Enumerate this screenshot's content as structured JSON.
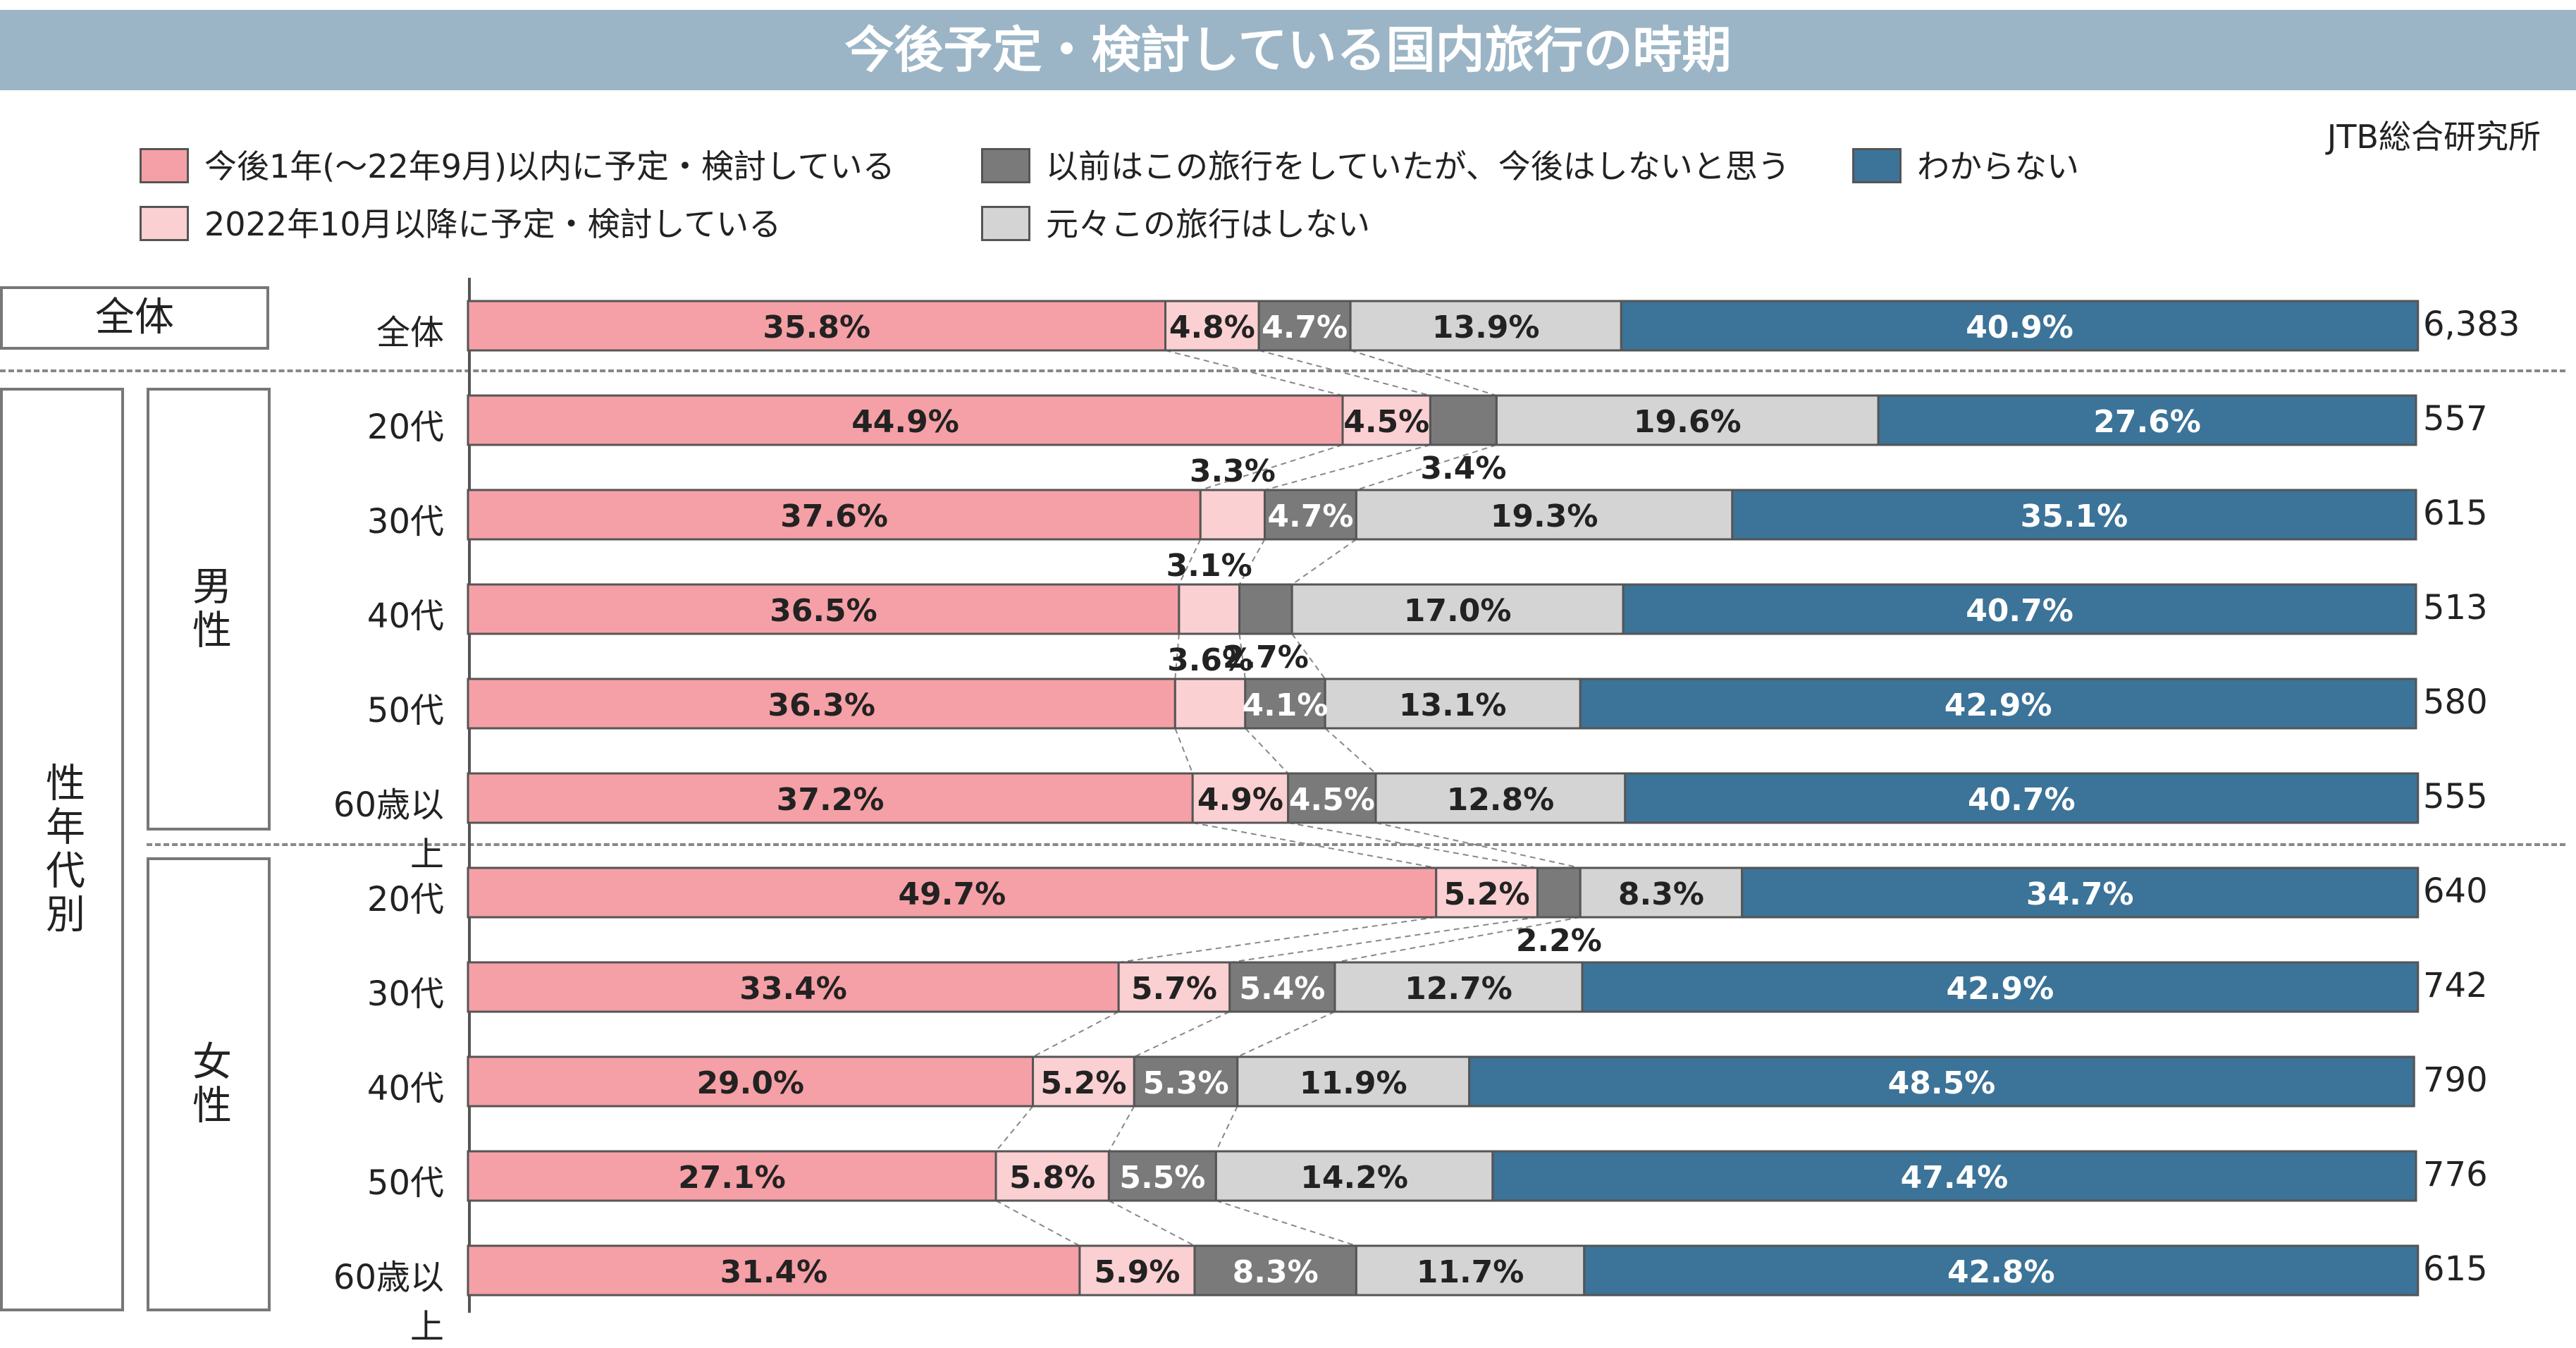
{
  "title": "今後予定・検討している国内旅行の時期",
  "source": "JTB総合研究所",
  "legend": [
    {
      "label": "今後1年(～22年9月)以内に予定・検討している",
      "color": "#f5a0a6"
    },
    {
      "label": "2022年10月以降に予定・検討している",
      "color": "#fbd0d2"
    },
    {
      "label": "以前はこの旅行をしていたが、今後はしないと思う",
      "color": "#7a7a7a"
    },
    {
      "label": "元々この旅行はしない",
      "color": "#d4d4d4"
    },
    {
      "label": "わからない",
      "color": "#3c7398"
    }
  ],
  "groups": {
    "overall": "全体",
    "by_gender_age": "性年代別",
    "male": "男性",
    "female": "女性"
  },
  "chart_data": {
    "type": "bar",
    "orientation": "horizontal-stacked-100",
    "title": "今後予定・検討している国内旅行の時期",
    "series_names": [
      "今後1年(～22年9月)以内に予定・検討している",
      "2022年10月以降に予定・検討している",
      "以前はこの旅行をしていたが、今後はしないと思う",
      "元々この旅行はしない",
      "わからない"
    ],
    "rows": [
      {
        "label": "全体",
        "group": "全体",
        "values": [
          35.8,
          4.8,
          4.7,
          13.9,
          40.9
        ],
        "labels": [
          "35.8%",
          "4.8%",
          "4.7%",
          "13.9%",
          "40.9%"
        ],
        "n": "6,383"
      },
      {
        "label": "20代",
        "group": "男性",
        "values": [
          44.9,
          4.5,
          3.4,
          19.6,
          27.6
        ],
        "labels": [
          "44.9%",
          "4.5%",
          "3.4%",
          "19.6%",
          "27.6%"
        ],
        "n": "557"
      },
      {
        "label": "30代",
        "group": "男性",
        "values": [
          37.6,
          3.3,
          4.7,
          19.3,
          35.1
        ],
        "labels": [
          "37.6%",
          "3.3%",
          "4.7%",
          "19.3%",
          "35.1%"
        ],
        "n": "615"
      },
      {
        "label": "40代",
        "group": "男性",
        "values": [
          36.5,
          3.1,
          2.7,
          17.0,
          40.7
        ],
        "labels": [
          "36.5%",
          "3.1%",
          "2.7%",
          "17.0%",
          "40.7%"
        ],
        "n": "513"
      },
      {
        "label": "50代",
        "group": "男性",
        "values": [
          36.3,
          3.6,
          4.1,
          13.1,
          42.9
        ],
        "labels": [
          "36.3%",
          "3.6%",
          "4.1%",
          "13.1%",
          "42.9%"
        ],
        "n": "580"
      },
      {
        "label": "60歳以上",
        "group": "男性",
        "values": [
          37.2,
          4.9,
          4.5,
          12.8,
          40.7
        ],
        "labels": [
          "37.2%",
          "4.9%",
          "4.5%",
          "12.8%",
          "40.7%"
        ],
        "n": "555"
      },
      {
        "label": "20代",
        "group": "女性",
        "values": [
          49.7,
          5.2,
          2.2,
          8.3,
          34.7
        ],
        "labels": [
          "49.7%",
          "5.2%",
          "2.2%",
          "8.3%",
          "34.7%"
        ],
        "n": "640"
      },
      {
        "label": "30代",
        "group": "女性",
        "values": [
          33.4,
          5.7,
          5.4,
          12.7,
          42.9
        ],
        "labels": [
          "33.4%",
          "5.7%",
          "5.4%",
          "12.7%",
          "42.9%"
        ],
        "n": "742"
      },
      {
        "label": "40代",
        "group": "女性",
        "values": [
          29.0,
          5.2,
          5.3,
          11.9,
          48.5
        ],
        "labels": [
          "29.0%",
          "5.2%",
          "5.3%",
          "11.9%",
          "48.5%"
        ],
        "n": "790"
      },
      {
        "label": "50代",
        "group": "女性",
        "values": [
          27.1,
          5.8,
          5.5,
          14.2,
          47.4
        ],
        "labels": [
          "27.1%",
          "5.8%",
          "5.5%",
          "14.2%",
          "47.4%"
        ],
        "n": "776"
      },
      {
        "label": "60歳以上",
        "group": "女性",
        "values": [
          31.4,
          5.9,
          8.3,
          11.7,
          42.8
        ],
        "labels": [
          "31.4%",
          "5.9%",
          "8.3%",
          "11.7%",
          "42.8%"
        ],
        "n": "615"
      }
    ],
    "xlim": [
      0,
      100
    ],
    "legend_position": "top"
  }
}
